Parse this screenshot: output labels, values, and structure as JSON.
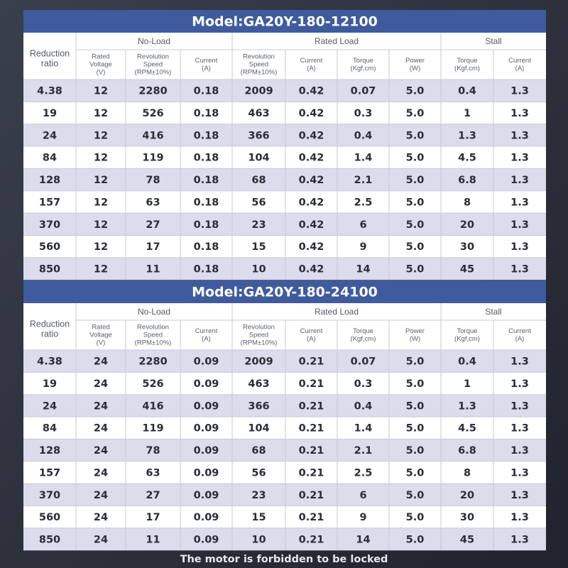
{
  "tables": [
    {
      "title": "Model:GA20Y-180-12100",
      "first_header": [
        "Reduction",
        "ratio"
      ],
      "groups": [
        "No-Load",
        "Rated Load",
        "Stall"
      ],
      "columns": [
        [
          "Rated",
          "Voltage",
          "(V)"
        ],
        [
          "Revolution",
          "Speed",
          "(RPM±10%)"
        ],
        [
          "Current",
          "(A)"
        ],
        [
          "Revolution",
          "Speed",
          "(RPM±10%)"
        ],
        [
          "Current",
          "(A)"
        ],
        [
          "Torque",
          "(Kgf,cm)"
        ],
        [
          "Power",
          "(W)"
        ],
        [
          "Torque",
          "(Kgf,cm)"
        ],
        [
          "Current",
          "(A)"
        ]
      ],
      "rows": [
        [
          "4.38",
          "12",
          "2280",
          "0.18",
          "2009",
          "0.42",
          "0.07",
          "5.0",
          "0.4",
          "1.3"
        ],
        [
          "19",
          "12",
          "526",
          "0.18",
          "463",
          "0.42",
          "0.3",
          "5.0",
          "1",
          "1.3"
        ],
        [
          "24",
          "12",
          "416",
          "0.18",
          "366",
          "0.42",
          "0.4",
          "5.0",
          "1.3",
          "1.3"
        ],
        [
          "84",
          "12",
          "119",
          "0.18",
          "104",
          "0.42",
          "1.4",
          "5.0",
          "4.5",
          "1.3"
        ],
        [
          "128",
          "12",
          "78",
          "0.18",
          "68",
          "0.42",
          "2.1",
          "5.0",
          "6.8",
          "1.3"
        ],
        [
          "157",
          "12",
          "63",
          "0.18",
          "56",
          "0.42",
          "2.5",
          "5.0",
          "8",
          "1.3"
        ],
        [
          "370",
          "12",
          "27",
          "0.18",
          "23",
          "0.42",
          "6",
          "5.0",
          "20",
          "1.3"
        ],
        [
          "560",
          "12",
          "17",
          "0.18",
          "15",
          "0.42",
          "9",
          "5.0",
          "30",
          "1.3"
        ],
        [
          "850",
          "12",
          "11",
          "0.18",
          "10",
          "0.42",
          "14",
          "5.0",
          "45",
          "1.3"
        ]
      ]
    },
    {
      "title": "Model:GA20Y-180-24100",
      "first_header": [
        "Reduction",
        "ratio"
      ],
      "groups": [
        "No-Load",
        "Rated Load",
        "Stall"
      ],
      "columns": [
        [
          "Rated",
          "Voltage",
          "(V)"
        ],
        [
          "Revolution",
          "Speed",
          "(RPM±10%)"
        ],
        [
          "Current",
          "(A)"
        ],
        [
          "Revolution",
          "Speed",
          "(RPM±10%)"
        ],
        [
          "Current",
          "(A)"
        ],
        [
          "Torque",
          "(Kgf,cm)"
        ],
        [
          "Power",
          "(W)"
        ],
        [
          "Torque",
          "(Kgf,cm)"
        ],
        [
          "Current",
          "(A)"
        ]
      ],
      "rows": [
        [
          "4.38",
          "24",
          "2280",
          "0.09",
          "2009",
          "0.21",
          "0.07",
          "5.0",
          "0.4",
          "1.3"
        ],
        [
          "19",
          "24",
          "526",
          "0.09",
          "463",
          "0.21",
          "0.3",
          "5.0",
          "1",
          "1.3"
        ],
        [
          "24",
          "24",
          "416",
          "0.09",
          "366",
          "0.21",
          "0.4",
          "5.0",
          "1.3",
          "1.3"
        ],
        [
          "84",
          "24",
          "119",
          "0.09",
          "104",
          "0.21",
          "1.4",
          "5.0",
          "4.5",
          "1.3"
        ],
        [
          "128",
          "24",
          "78",
          "0.09",
          "68",
          "0.21",
          "2.1",
          "5.0",
          "6.8",
          "1.3"
        ],
        [
          "157",
          "24",
          "63",
          "0.09",
          "56",
          "0.21",
          "2.5",
          "5.0",
          "8",
          "1.3"
        ],
        [
          "370",
          "24",
          "27",
          "0.09",
          "23",
          "0.21",
          "6",
          "5.0",
          "20",
          "1.3"
        ],
        [
          "560",
          "24",
          "17",
          "0.09",
          "15",
          "0.21",
          "9",
          "5.0",
          "30",
          "1.3"
        ],
        [
          "850",
          "24",
          "11",
          "0.09",
          "10",
          "0.21",
          "14",
          "5.0",
          "45",
          "1.3"
        ]
      ]
    }
  ],
  "footer": "The motor is forbidden to be locked"
}
